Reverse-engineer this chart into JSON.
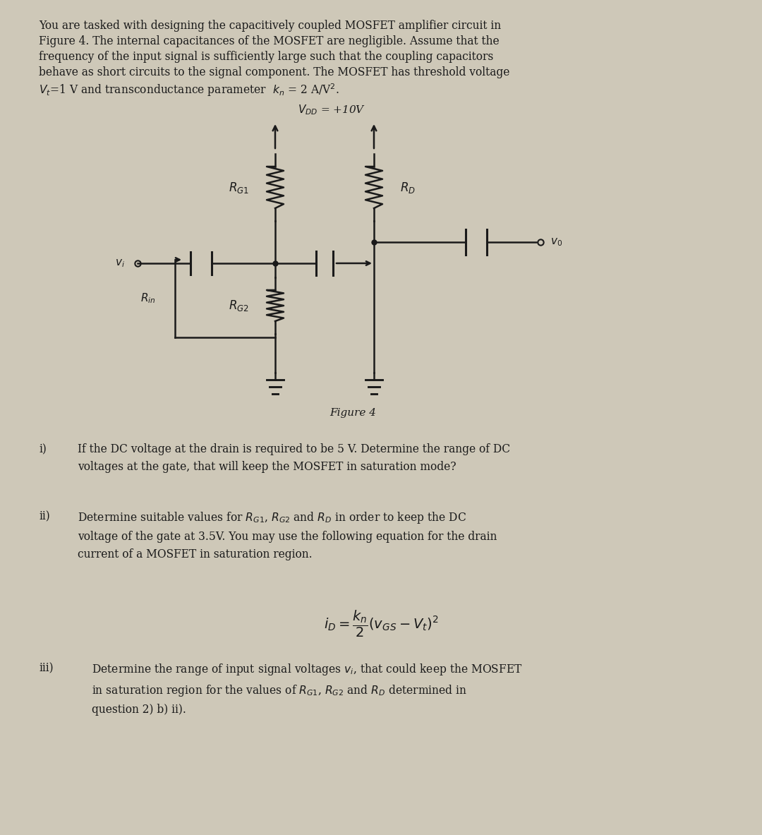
{
  "bg_color": "#cec8b8",
  "text_color": "#1a1a1a",
  "fig_width": 10.8,
  "fig_height": 11.83,
  "vdd_label": "$V_{DD}$ = +10V",
  "rg1_label": "$R_{G1}$",
  "rd_label": "$R_D$",
  "rg2_label": "$R_{G2}$",
  "rin_label": "$R_{in}$",
  "vi_label": "$v_i$",
  "vo_label": "$v_0$",
  "fig_caption": "Figure 4"
}
